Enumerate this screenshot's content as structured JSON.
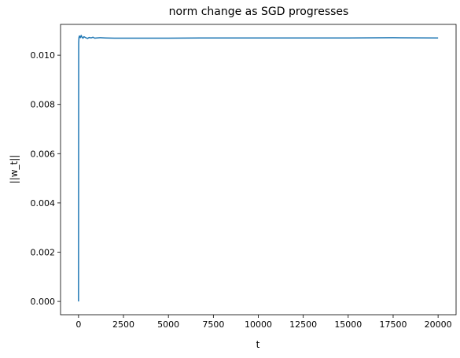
{
  "chart_data": {
    "type": "line",
    "title": "norm change as SGD progresses",
    "xlabel": "t",
    "ylabel": "||w_t||",
    "xlim": [
      -1000,
      21000
    ],
    "ylim": [
      -0.00054,
      0.01125
    ],
    "xticks": [
      0,
      2500,
      5000,
      7500,
      10000,
      12500,
      15000,
      17500,
      20000
    ],
    "xtick_labels": [
      "0",
      "2500",
      "5000",
      "7500",
      "10000",
      "12500",
      "15000",
      "17500",
      "20000"
    ],
    "yticks": [
      0.0,
      0.002,
      0.004,
      0.006,
      0.008,
      0.01
    ],
    "ytick_labels": [
      "0.000",
      "0.002",
      "0.004",
      "0.006",
      "0.008",
      "0.010"
    ],
    "grid": false,
    "legend": "none",
    "series": [
      {
        "color": "#1f77b4",
        "x": [
          0,
          10,
          25,
          50,
          80,
          100,
          150,
          200,
          250,
          300,
          400,
          500,
          600,
          700,
          800,
          900,
          1000,
          1200,
          1500,
          2000,
          3000,
          5000,
          7500,
          10000,
          12500,
          15000,
          17500,
          20000
        ],
        "y": [
          0.0,
          0.0105,
          0.01072,
          0.01078,
          0.01074,
          0.01071,
          0.0108,
          0.01072,
          0.01069,
          0.01075,
          0.01071,
          0.01068,
          0.01072,
          0.0107,
          0.01073,
          0.01069,
          0.0107,
          0.01071,
          0.0107,
          0.01069,
          0.01069,
          0.01069,
          0.0107,
          0.0107,
          0.0107,
          0.0107,
          0.01071,
          0.0107
        ]
      }
    ]
  }
}
